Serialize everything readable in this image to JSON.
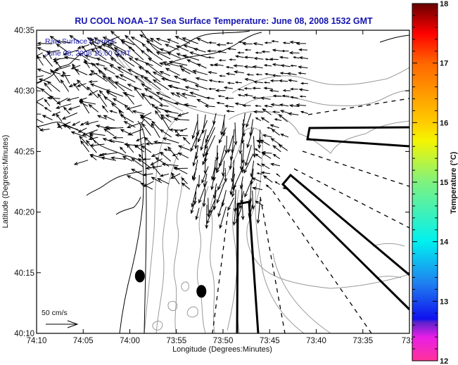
{
  "title": "RU COOL  NOAA–17  Sea Surface Temperature:  June 08, 2008 1532 GMT",
  "subtitle_lines": [
    "Raw Surface Current:",
    "June 08, 2008 15:00 GMT"
  ],
  "scale_label": "50 cm/s",
  "chart_data": {
    "type": "map",
    "title": "RU COOL  NOAA–17  Sea Surface Temperature:  June 08, 2008 1532 GMT",
    "xlabel": "Longitude (Degrees:Minutes)",
    "ylabel": "Latitude (Degrees:Minutes)",
    "x_ticks": [
      "74:10",
      "74:05",
      "74:00",
      "73:55",
      "73:50",
      "73:45",
      "73:40",
      "73:35",
      "73:3"
    ],
    "y_ticks": [
      "40:35",
      "40:30",
      "40:25",
      "40:20",
      "40:15",
      "40:10"
    ],
    "xlim_deg": [
      -74.1667,
      -73.5
    ],
    "ylim_deg": [
      40.1667,
      40.5833
    ],
    "colorbar": {
      "label": "Temperature (°C)",
      "ticks": [
        "18",
        "17",
        "16",
        "15",
        "14",
        "13",
        "12"
      ],
      "range": [
        12,
        18
      ],
      "stops": [
        {
          "v": 12.0,
          "c": "#ff3399"
        },
        {
          "v": 12.4,
          "c": "#e81ee8"
        },
        {
          "v": 12.65,
          "c": "#5a22cc"
        },
        {
          "v": 12.7,
          "c": "#1010ee"
        },
        {
          "v": 13.3,
          "c": "#1f7ff0"
        },
        {
          "v": 14.0,
          "c": "#00f0f0"
        },
        {
          "v": 15.0,
          "c": "#7ff27f"
        },
        {
          "v": 15.7,
          "c": "#f5f500"
        },
        {
          "v": 16.0,
          "c": "#ffcc00"
        },
        {
          "v": 17.0,
          "c": "#ff6600"
        },
        {
          "v": 17.5,
          "c": "#ff0000"
        },
        {
          "v": 18.0,
          "c": "#660000"
        }
      ]
    },
    "markers": [
      {
        "name": "station-a",
        "lon": -73.982,
        "lat": 40.2455
      },
      {
        "name": "station-b",
        "lon": -73.872,
        "lat": 40.2245
      }
    ],
    "colors": {
      "frame": "#000000",
      "coast": "#000000",
      "bathymetry": "#999999",
      "vectors": "#000000",
      "title": "#1515b0"
    }
  }
}
